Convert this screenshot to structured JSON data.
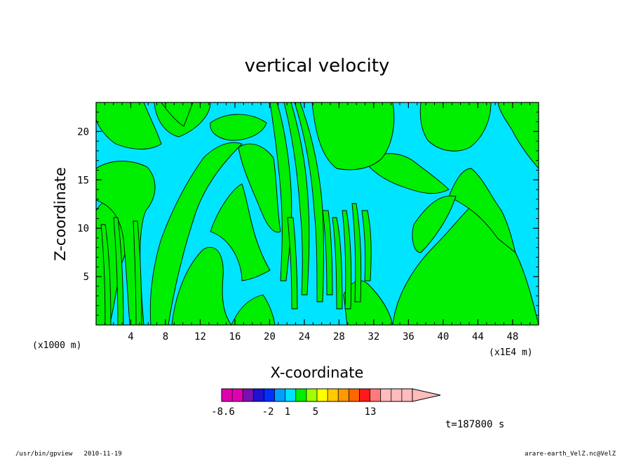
{
  "chart_data": {
    "type": "heatmap",
    "title": "vertical velocity",
    "xlabel": "X-coordinate",
    "ylabel": "Z-coordinate",
    "x_unit_left": "(x1000 m)",
    "x_unit_right": "(x1E4 m)",
    "xlim": [
      0,
      51
    ],
    "ylim": [
      0,
      23
    ],
    "x_ticks": [
      "4",
      "8",
      "12",
      "16",
      "20",
      "24",
      "28",
      "32",
      "36",
      "40",
      "44",
      "48"
    ],
    "y_ticks": [
      "5",
      "10",
      "15",
      "20"
    ],
    "field_colors": {
      "negative": "#00e5ff",
      "positive": "#00ee00"
    },
    "colorbar": {
      "labels": [
        "-8.6",
        "-2",
        "1",
        "5",
        "13"
      ],
      "colors": [
        "#e000b0",
        "#e000b0",
        "#7a10b0",
        "#2010d0",
        "#0030ff",
        "#00a0ff",
        "#00e0ff",
        "#00ee00",
        "#a0ff00",
        "#ffff00",
        "#ffcc00",
        "#ff9900",
        "#ff6600",
        "#ff1a1a",
        "#ff7a7a",
        "#ffbcbc",
        "#ffbcbc",
        "#ffbcbc"
      ]
    },
    "time_label": "t=187800 s"
  },
  "footer": {
    "left": "/usr/bin/gpview   2010-11-19",
    "right": "arare-earth_VelZ.nc@VelZ"
  }
}
